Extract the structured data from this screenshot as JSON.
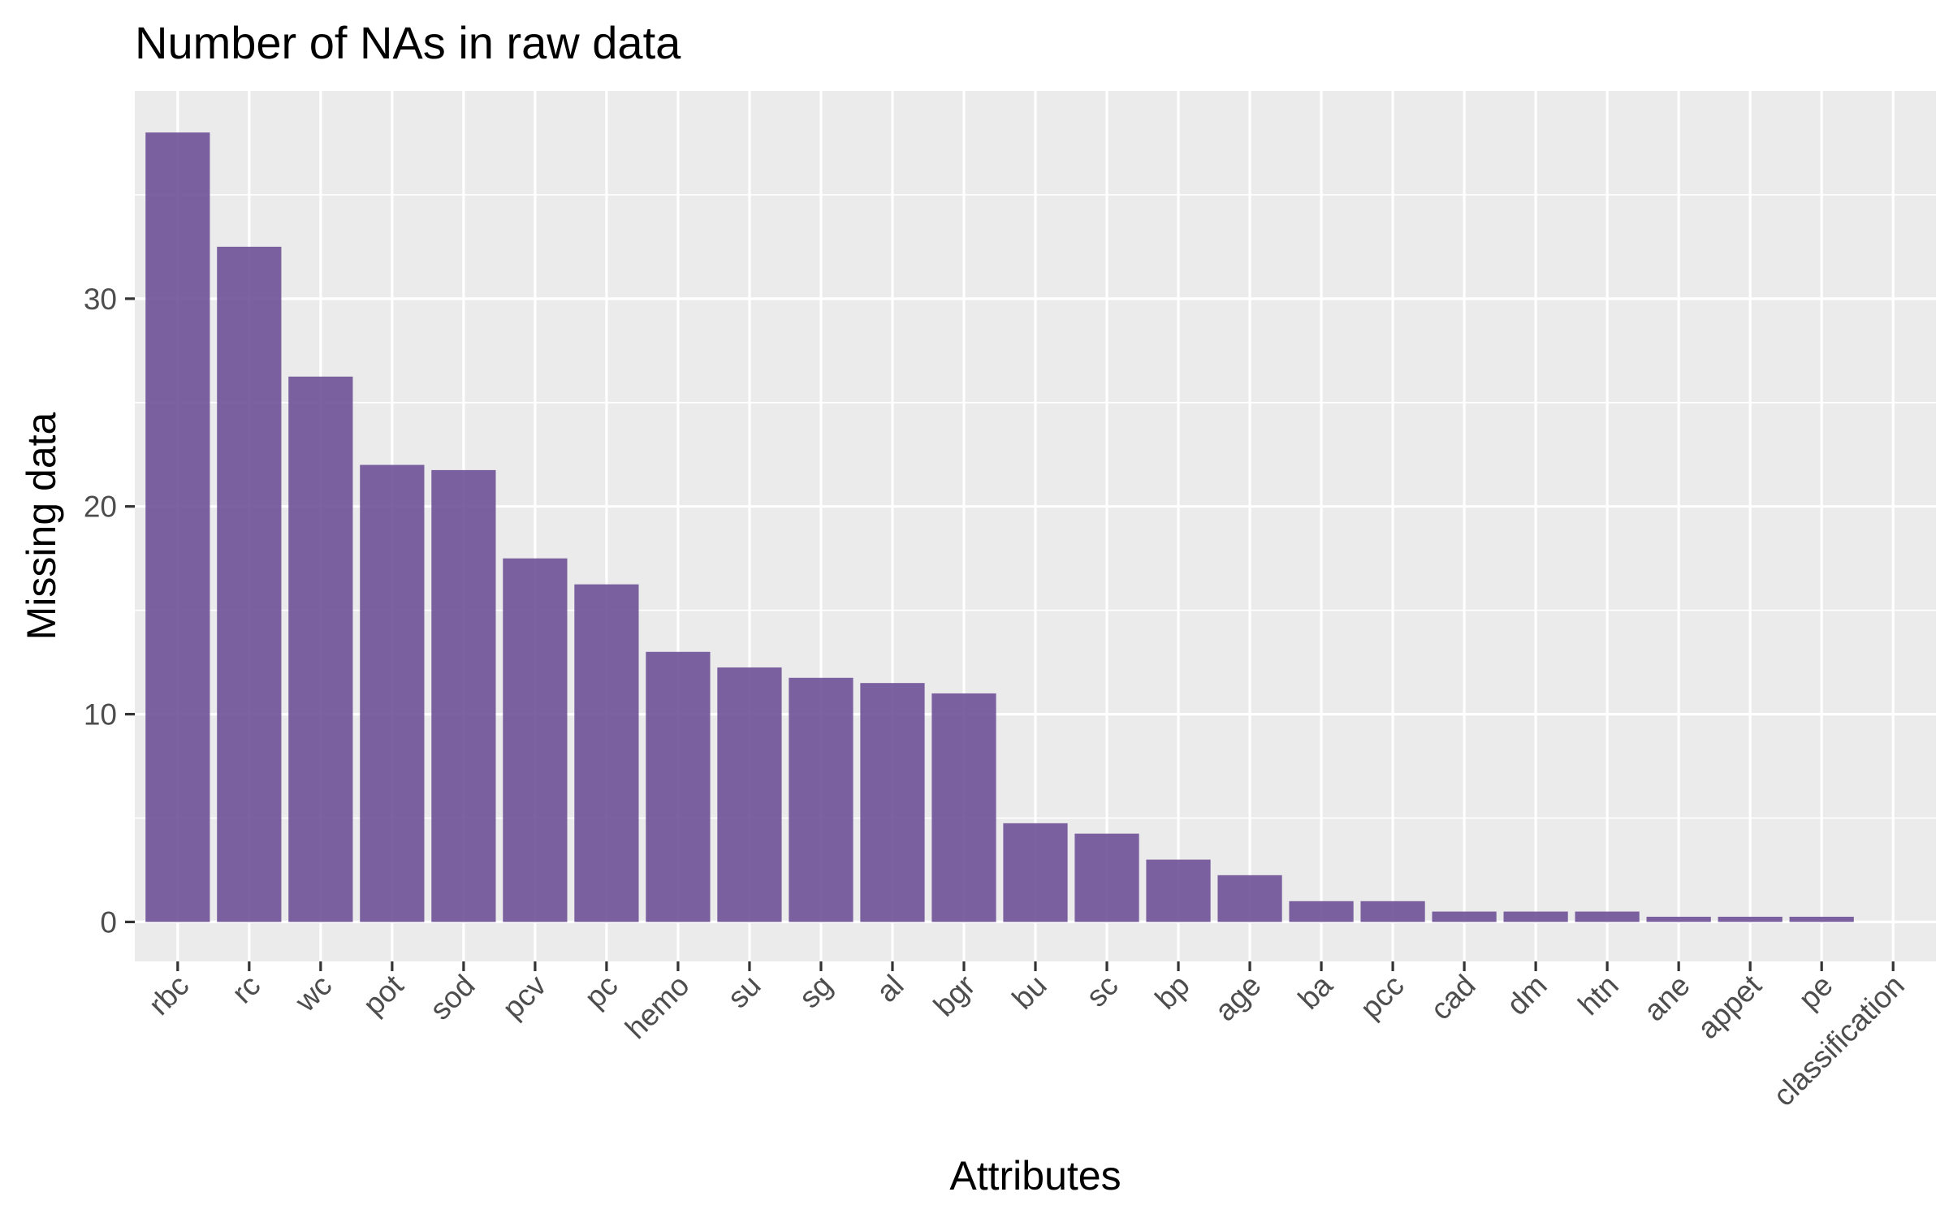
{
  "chart_data": {
    "type": "bar",
    "title": "Number of NAs in raw data",
    "xlabel": "Attributes",
    "ylabel": "Missing data",
    "categories": [
      "rbc",
      "rc",
      "wc",
      "pot",
      "sod",
      "pcv",
      "pc",
      "hemo",
      "su",
      "sg",
      "al",
      "bgr",
      "bu",
      "sc",
      "bp",
      "age",
      "ba",
      "pcc",
      "cad",
      "dm",
      "htn",
      "ane",
      "appet",
      "pe",
      "classification"
    ],
    "values": [
      38,
      32.5,
      26.25,
      22,
      21.75,
      17.5,
      16.25,
      13,
      12.25,
      11.75,
      11.5,
      11,
      4.75,
      4.25,
      3,
      2.25,
      1,
      1,
      0.5,
      0.5,
      0.5,
      0.25,
      0.25,
      0.25,
      0
    ],
    "ylim": [
      -1.9,
      40
    ],
    "yticks": [
      0,
      10,
      20,
      30
    ],
    "ytick_labels": [
      "0",
      "10",
      "20",
      "30"
    ],
    "grid": true,
    "bar_color": "#6a4c93",
    "panel_color": "#ebebeb"
  }
}
